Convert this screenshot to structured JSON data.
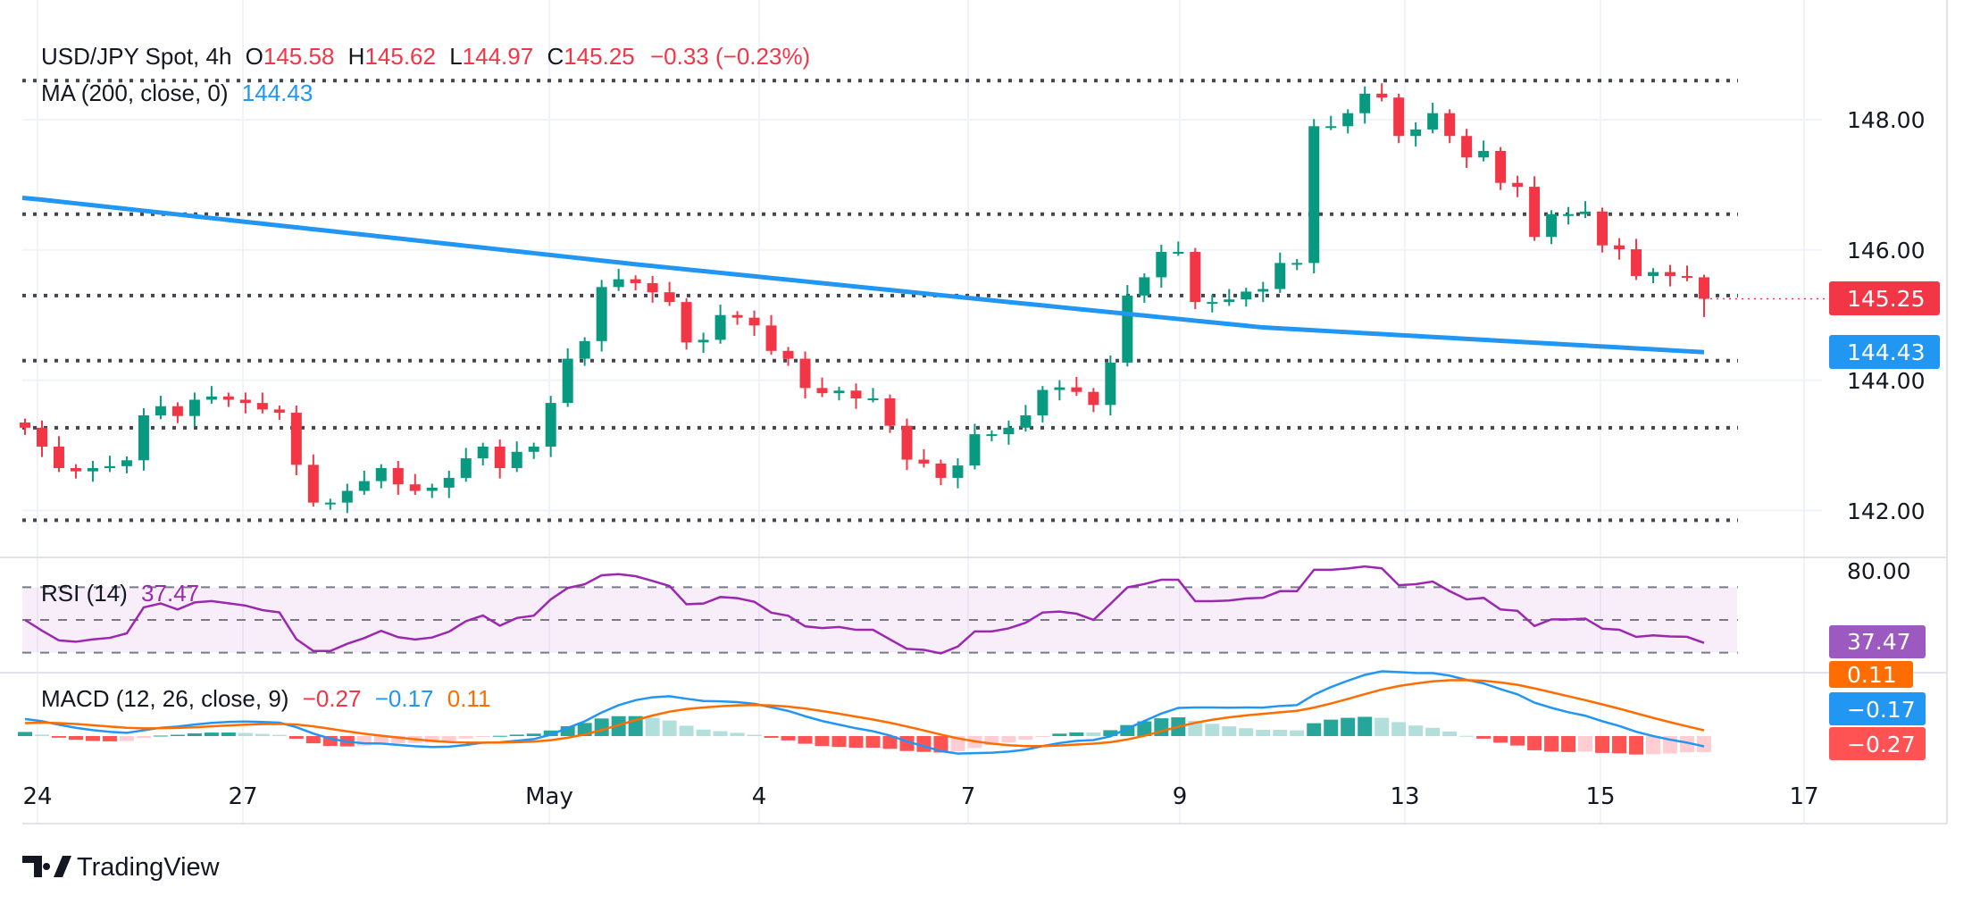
{
  "legend": {
    "symbol": "USD/JPY Spot, 4h",
    "o_label": "O",
    "o": "145.58",
    "h_label": "H",
    "h": "145.62",
    "l_label": "L",
    "l": "144.97",
    "c_label": "C",
    "c": "145.25",
    "change": "−0.33 (−0.23%)",
    "ma_label": "MA (200, close, 0)",
    "ma_value": "144.43",
    "rsi_label": "RSI (14)",
    "rsi_value": "37.47",
    "macd_label": "MACD (12, 26, close, 9)",
    "macd_hist": "−0.27",
    "macd_line": "−0.17",
    "macd_signal": "0.11"
  },
  "price_axis": [
    "148.00",
    "146.00",
    "144.00",
    "142.00"
  ],
  "rsi_axis": [
    "80.00"
  ],
  "tags": {
    "last": "145.25",
    "ma": "144.43",
    "rsi": "37.47",
    "signal": "0.11",
    "macd": "−0.17",
    "hist": "−0.27"
  },
  "time_axis": [
    "24",
    "27",
    "May",
    "4",
    "7",
    "9",
    "13",
    "15",
    "17"
  ],
  "branding": "TradingView",
  "colors": {
    "up": "#089981",
    "down": "#f23645",
    "ma": "#2196f3",
    "rsi": "#9c27b0",
    "macd": "#2196f3",
    "signal": "#ff6d00"
  },
  "chart_data": {
    "type": "candlestick",
    "title": "USD/JPY Spot, 4h",
    "ylim": [
      141.4,
      148.9
    ],
    "closes": [
      143.27,
      142.98,
      142.65,
      142.6,
      142.65,
      142.68,
      142.77,
      143.46,
      143.6,
      143.45,
      143.7,
      143.75,
      143.7,
      143.65,
      143.55,
      143.5,
      142.7,
      142.12,
      142.12,
      142.3,
      142.45,
      142.65,
      142.4,
      142.3,
      142.35,
      142.5,
      142.8,
      142.98,
      142.65,
      142.9,
      142.98,
      143.65,
      144.33,
      144.6,
      145.43,
      145.55,
      145.49,
      145.35,
      145.2,
      144.58,
      144.62,
      145.0,
      144.96,
      144.84,
      144.45,
      144.33,
      143.88,
      143.8,
      143.84,
      143.72,
      143.72,
      143.3,
      142.78,
      142.72,
      142.5,
      142.69,
      143.17,
      143.17,
      143.27,
      143.46,
      143.85,
      143.89,
      143.82,
      143.62,
      144.27,
      145.3,
      145.58,
      145.97,
      145.97,
      145.2,
      145.2,
      145.24,
      145.36,
      145.4,
      145.8,
      145.8,
      147.9,
      147.9,
      148.1,
      148.4,
      148.34,
      147.75,
      147.85,
      148.1,
      147.75,
      147.42,
      147.52,
      147.03,
      146.97,
      146.2,
      146.55,
      146.55,
      146.59,
      146.07,
      146.01,
      145.6,
      145.66,
      145.6,
      145.58,
      145.25
    ],
    "first_open": 143.35,
    "last_candle": {
      "open": 145.58,
      "high": 145.62,
      "low": 144.97,
      "close": 145.25
    },
    "ma200": [
      [
        0,
        146.8
      ],
      [
        36,
        145.78
      ],
      [
        58,
        145.2
      ],
      [
        73,
        144.81
      ],
      [
        99,
        144.43
      ]
    ],
    "levels": [
      148.6,
      146.55,
      145.3,
      144.3,
      143.27,
      141.85
    ],
    "rsi_bands": [
      70,
      50,
      30
    ],
    "price_ticks": [
      148,
      146,
      144,
      142
    ]
  }
}
